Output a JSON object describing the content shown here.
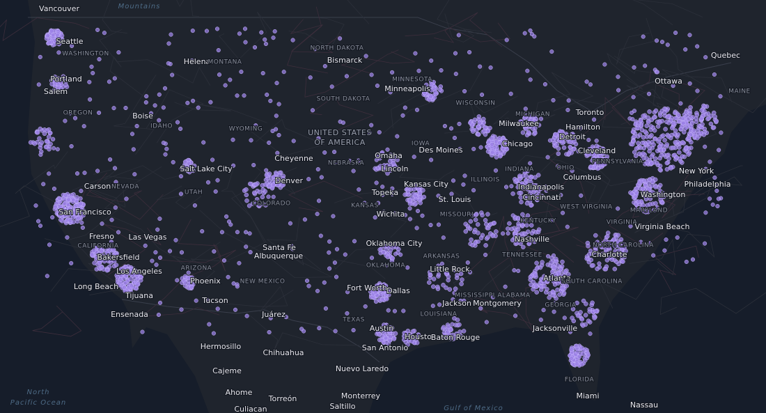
{
  "map": {
    "labels": [
      "Vancouver",
      "Mountains",
      "Seattle",
      "WASHINGTON",
      "Helena",
      "MONTANA",
      "NORTH DAKOTA",
      "Bismarck",
      "Portland",
      "Salem",
      "OREGON",
      "Boise",
      "IDAHO",
      "WYOMING",
      "SOUTH DAKOTA",
      "MINNESOTA",
      "Minneapolis",
      "WISCONSIN",
      "MICHIGAN",
      "Toronto",
      "Ottawa",
      "Quebec",
      "MAINE",
      "Hamilton",
      "Milwaukee",
      "Detroit",
      "Chicago",
      "Cleveland",
      "UNITED STATES",
      "OF AMERICA",
      "Cheyenne",
      "NEBRASKA",
      "Omaha",
      "Des Moines",
      "IOWA",
      "Lincoln",
      "Salt Lake City",
      "NEVADA",
      "Carson",
      "UTAH",
      "Denver",
      "COLORADO",
      "Kansas City",
      "KANSAS",
      "Topeka",
      "St. Louis",
      "MISSOURI",
      "Wichita",
      "ILLINOIS",
      "INDIANA",
      "Indianapolis",
      "OHIO",
      "Columbus",
      "PENNSYLVANIA",
      "New York",
      "Philadelphia",
      "Washington",
      "MARYLAND",
      "WEST VIRGINIA",
      "Cincinnati",
      "KENTUCKY",
      "VIRGINIA",
      "Virginia Beach",
      "San Francisco",
      "Fresno",
      "CALIFORNIA",
      "Las Vegas",
      "Bakersfield",
      "Los Angeles",
      "Long Beach",
      "Tijuana",
      "Ensenada",
      "ARIZONA",
      "Phoenix",
      "Tucson",
      "Santa Fe",
      "Albuquerque",
      "NEW MEXICO",
      "Juárez",
      "Oklahoma City",
      "OKLAHOMA",
      "ARKANSAS",
      "Little Rock",
      "TENNESSEE",
      "Nashville",
      "Charlotte",
      "NORTH CAROLINA",
      "Atlanta",
      "SOUTH CAROLINA",
      "GEORGIA",
      "ALABAMA",
      "MISSISSIPPI",
      "Montgomery",
      "Jackson",
      "LOUISIANA",
      "Fort Worth",
      "Dallas",
      "TEXAS",
      "Austin",
      "Houston",
      "Baton Rouge",
      "San Antonio",
      "Jacksonville",
      "FLORIDA",
      "Miami",
      "Hermosillo",
      "Chihuahua",
      "Cajeme",
      "Ahome",
      "Nuevo Laredo",
      "Monterrey",
      "Torreón",
      "Saltillo",
      "Culiacan",
      "Gulf of Mexico",
      "North",
      "Pacific Ocean",
      "Nassau"
    ]
  }
}
